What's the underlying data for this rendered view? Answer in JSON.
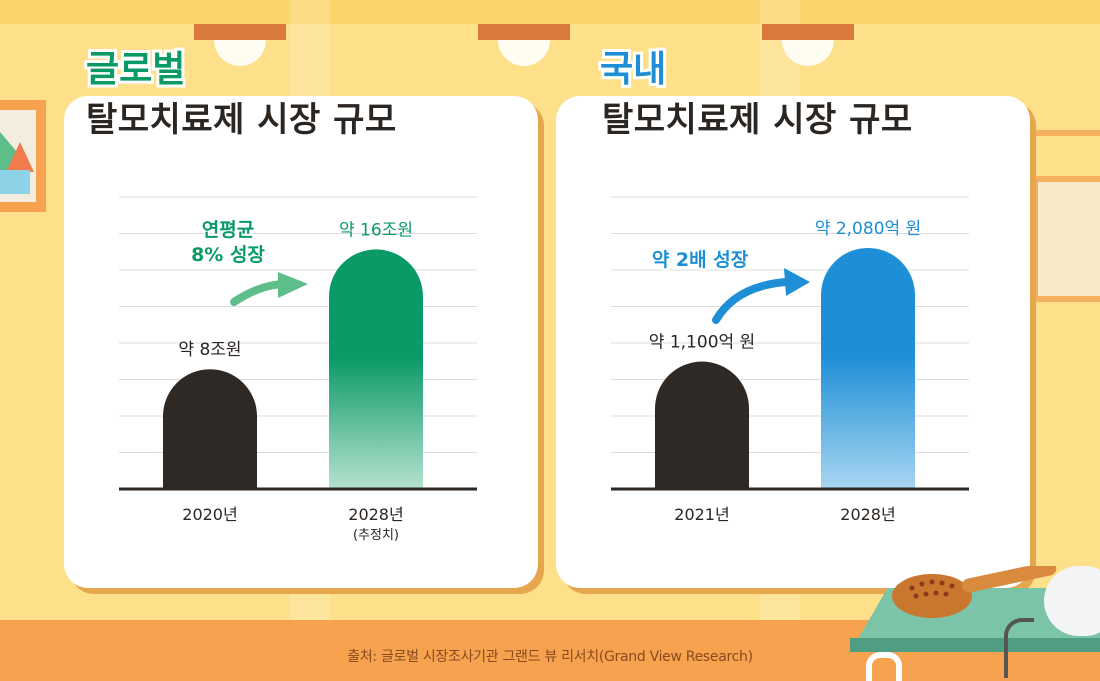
{
  "cards": [
    {
      "title_top": "글로벌",
      "title": "탈모치료제 시장 규모",
      "title_top_color": "#0A9A66",
      "annotation": [
        "연평균",
        "8% 성장"
      ],
      "annotation_color": "#0A9A66"
    },
    {
      "title_top": "국내",
      "title": "탈모치료제 시장 규모",
      "title_top_color": "#1E8FD6",
      "annotation": [
        "약 2배 성장"
      ],
      "annotation_color": "#1E8FD6"
    }
  ],
  "chart_data": [
    {
      "type": "bar",
      "categories": [
        "2020년",
        "2028년"
      ],
      "category_notes": [
        "",
        "(추정치)"
      ],
      "values": [
        8,
        16
      ],
      "data_labels": [
        "약 8조원",
        "약 16조원"
      ],
      "unit": "조원",
      "colors": [
        "#2E2925",
        "#0A9A66"
      ],
      "grid": true,
      "ylim": [
        0,
        19.5
      ]
    },
    {
      "type": "bar",
      "categories": [
        "2021년",
        "2028년"
      ],
      "category_notes": [
        "",
        ""
      ],
      "values": [
        1100,
        2080
      ],
      "data_labels": [
        "약 1,100억 원",
        "약 2,080억 원"
      ],
      "unit": "억 원",
      "colors": [
        "#2E2925",
        "#1E8FD6"
      ],
      "grid": true,
      "ylim": [
        0,
        2520
      ]
    }
  ],
  "source": "출처:  글로벌 시장조사기관 그랜드 뷰 리서치(Grand View Research)"
}
